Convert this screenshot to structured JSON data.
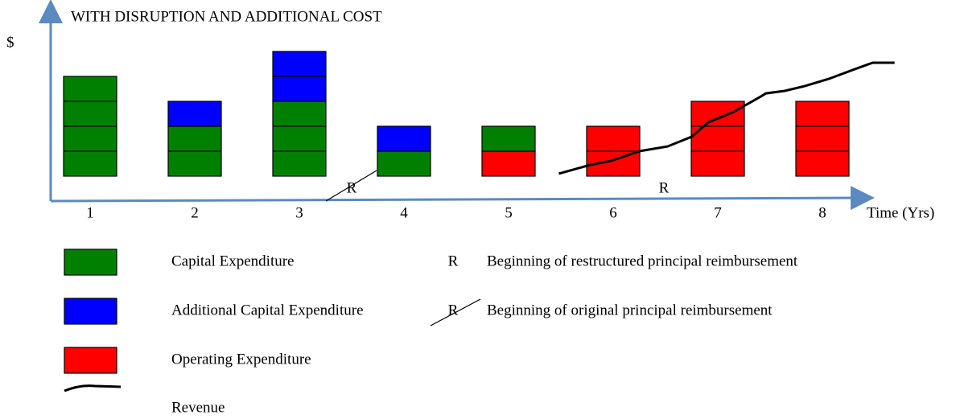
{
  "chart_data": {
    "type": "bar",
    "stacked": true,
    "title": "WITH DISRUPTION AND ADDITIONAL COST",
    "y_label": "$",
    "x_label": "Time (Yrs)",
    "categories": [
      "1",
      "2",
      "3",
      "4",
      "5",
      "6",
      "7",
      "8"
    ],
    "ylim": [
      -1,
      6
    ],
    "series": [
      {
        "name": "Operating Expenditure",
        "color": "#ff0000",
        "values": [
          0,
          0,
          0,
          0,
          1,
          2,
          3,
          3
        ]
      },
      {
        "name": "Capital Expenditure",
        "color": "#008000",
        "values": [
          4,
          2,
          3,
          1,
          1,
          0,
          0,
          0
        ]
      },
      {
        "name": "Additional Capital Expenditure",
        "color": "#0000ff",
        "values": [
          0,
          1,
          2,
          1,
          0,
          0,
          0,
          0
        ]
      }
    ],
    "line_series": {
      "name": "Revenue",
      "color": "#000000",
      "x": [
        5.48,
        5.78,
        5.98,
        6.25,
        6.52,
        6.75,
        6.91,
        7.14,
        7.41,
        7.46,
        7.64,
        7.83,
        8.06,
        8.29,
        8.48,
        8.69
      ],
      "values": [
        0.1,
        0.45,
        0.61,
        1.0,
        1.19,
        1.58,
        2.16,
        2.55,
        3.19,
        3.32,
        3.42,
        3.61,
        3.9,
        4.26,
        4.55,
        4.55
      ]
    },
    "annotations": [
      "R",
      "R"
    ],
    "marker_legend": [
      {
        "symbol": "R",
        "text": "Beginning of restructured principal reimbursement"
      },
      {
        "symbol": "R",
        "text": "Beginning of original principal reimbursement"
      }
    ]
  }
}
